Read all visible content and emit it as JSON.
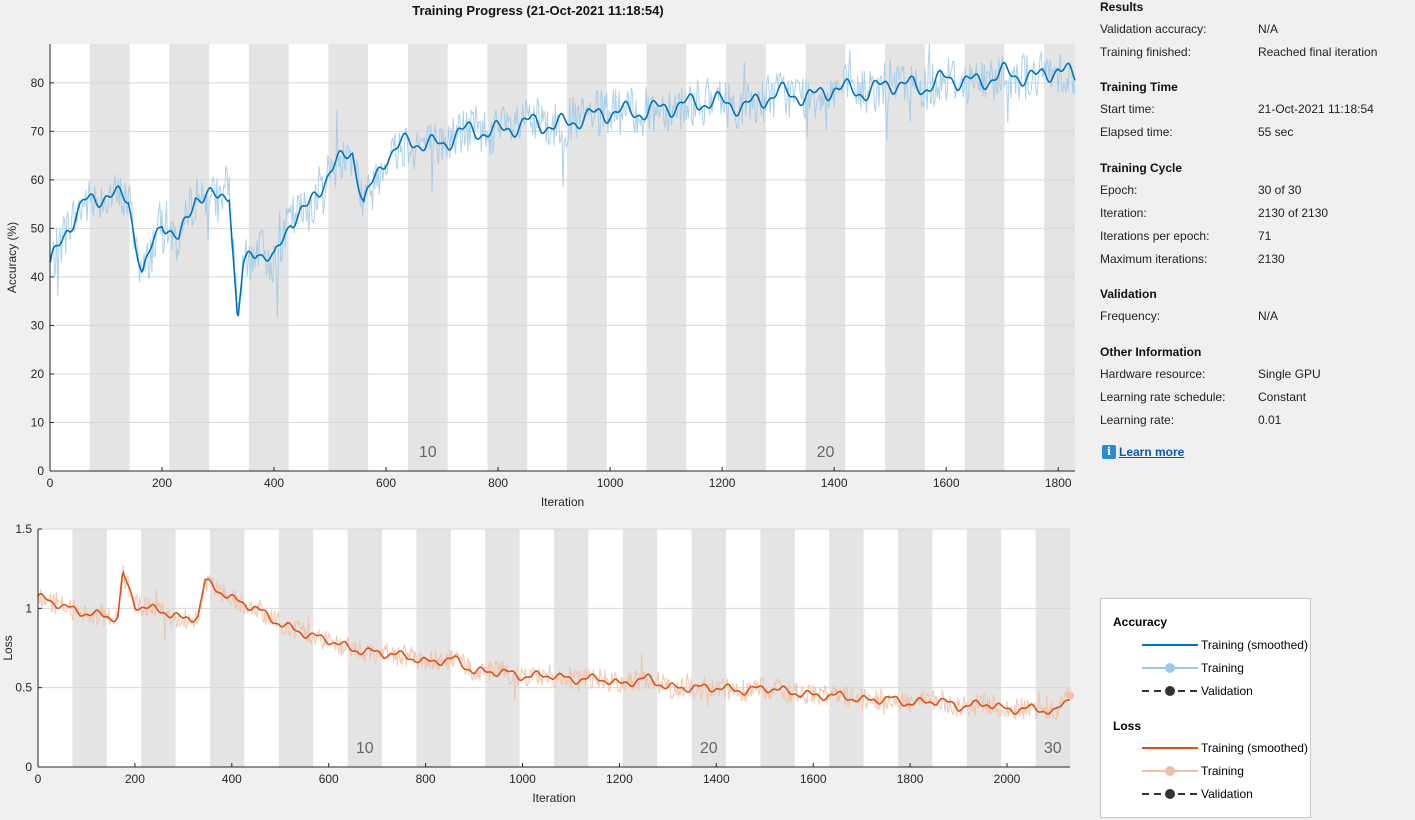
{
  "title": "Training Progress (21-Oct-2021 11:18:54)",
  "results": {
    "heading": "Results",
    "rows": [
      {
        "label": "Validation accuracy:",
        "value": "N/A"
      },
      {
        "label": "Training finished:",
        "value": "Reached final iteration"
      }
    ]
  },
  "training_time": {
    "heading": "Training Time",
    "rows": [
      {
        "label": "Start time:",
        "value": "21-Oct-2021 11:18:54"
      },
      {
        "label": "Elapsed time:",
        "value": "55 sec"
      }
    ]
  },
  "training_cycle": {
    "heading": "Training Cycle",
    "rows": [
      {
        "label": "Epoch:",
        "value": "30 of 30"
      },
      {
        "label": "Iteration:",
        "value": "2130 of 2130"
      },
      {
        "label": "Iterations per epoch:",
        "value": "71"
      },
      {
        "label": "Maximum iterations:",
        "value": "2130"
      }
    ]
  },
  "validation": {
    "heading": "Validation",
    "rows": [
      {
        "label": "Frequency:",
        "value": "N/A"
      }
    ]
  },
  "other": {
    "heading": "Other Information",
    "rows": [
      {
        "label": "Hardware resource:",
        "value": "Single GPU"
      },
      {
        "label": "Learning rate schedule:",
        "value": "Constant"
      },
      {
        "label": "Learning rate:",
        "value": "0.01"
      }
    ]
  },
  "learn_more": "Learn more",
  "learn_more_icon": "info-icon",
  "legend": {
    "accuracy_heading": "Accuracy",
    "loss_heading": "Loss",
    "accuracy_items": [
      "Training (smoothed)",
      "Training",
      "Validation"
    ],
    "loss_items": [
      "Training (smoothed)",
      "Training",
      "Validation"
    ]
  },
  "colors": {
    "accuracy": "#0072bd",
    "accuracy_light": "#9fc9e8",
    "loss": "#d95319",
    "loss_light": "#f2bea5",
    "epoch_band": "#e4e4e4",
    "validation": "#333333"
  },
  "chart_data": [
    {
      "type": "line",
      "title": "",
      "xlabel": "Iteration",
      "ylabel": "Accuracy (%)",
      "xlim": [
        0,
        1830
      ],
      "ylim": [
        0,
        88
      ],
      "xticks": [
        0,
        200,
        400,
        600,
        800,
        1000,
        1200,
        1400,
        1600,
        1800
      ],
      "yticks": [
        0,
        10,
        20,
        30,
        40,
        50,
        60,
        70,
        80
      ],
      "iterations_per_epoch": 71,
      "epoch_labels": [
        10,
        20
      ],
      "grid": true,
      "series": [
        {
          "name": "Training (smoothed)",
          "x": [
            0,
            30,
            60,
            100,
            140,
            165,
            200,
            230,
            260,
            300,
            320,
            335,
            345,
            370,
            400,
            430,
            460,
            500,
            540,
            560,
            600,
            640,
            700,
            730,
            800,
            860,
            900,
            960,
            1000,
            1060,
            1100,
            1160,
            1200,
            1240,
            1300,
            1360,
            1400,
            1460,
            1500,
            1560,
            1600,
            1660,
            1700,
            1760,
            1800,
            1830
          ],
          "y": [
            42,
            50,
            55,
            57,
            56,
            40,
            52,
            47,
            57,
            56,
            58,
            30,
            42,
            46,
            43,
            52,
            54,
            62,
            66,
            55,
            65,
            68,
            67,
            70,
            70,
            72,
            71,
            73,
            74,
            74,
            75,
            76,
            76,
            75,
            78,
            77,
            79,
            78,
            80,
            79,
            81,
            80,
            82,
            81,
            83,
            81
          ]
        }
      ]
    },
    {
      "type": "line",
      "title": "",
      "xlabel": "Iteration",
      "ylabel": "Loss",
      "xlim": [
        0,
        2130
      ],
      "ylim": [
        0,
        1.5
      ],
      "xticks": [
        0,
        200,
        400,
        600,
        800,
        1000,
        1200,
        1400,
        1600,
        1800,
        2000
      ],
      "yticks": [
        0,
        0.5,
        1,
        1.5
      ],
      "iterations_per_epoch": 71,
      "epoch_labels": [
        10,
        20,
        30
      ],
      "grid": true,
      "series": [
        {
          "name": "Training (smoothed)",
          "x": [
            0,
            40,
            80,
            120,
            165,
            175,
            200,
            260,
            300,
            330,
            345,
            400,
            450,
            500,
            560,
            600,
            650,
            700,
            760,
            800,
            860,
            900,
            960,
            1000,
            1060,
            1100,
            1160,
            1200,
            1260,
            1300,
            1360,
            1400,
            1460,
            1500,
            1560,
            1600,
            1660,
            1700,
            1760,
            1800,
            1860,
            1900,
            1960,
            2000,
            2060,
            2100,
            2130
          ],
          "y": [
            1.07,
            1.03,
            0.98,
            0.96,
            0.94,
            1.22,
            1.02,
            0.98,
            0.93,
            0.95,
            1.17,
            1.06,
            1.0,
            0.9,
            0.83,
            0.8,
            0.74,
            0.72,
            0.7,
            0.66,
            0.68,
            0.6,
            0.6,
            0.57,
            0.58,
            0.55,
            0.56,
            0.52,
            0.56,
            0.5,
            0.5,
            0.5,
            0.48,
            0.5,
            0.47,
            0.45,
            0.45,
            0.42,
            0.43,
            0.4,
            0.42,
            0.38,
            0.4,
            0.36,
            0.37,
            0.34,
            0.45
          ]
        }
      ]
    }
  ]
}
